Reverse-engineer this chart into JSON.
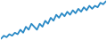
{
  "values": [
    1,
    2,
    1.5,
    2.5,
    2,
    3,
    2.5,
    4,
    3,
    5,
    4,
    6,
    5,
    4,
    6,
    5,
    7,
    6,
    8,
    7,
    9,
    8,
    9.5,
    8.5,
    10,
    9,
    10.5,
    9.5,
    11,
    10,
    11.5,
    10.5,
    12,
    11,
    12,
    11.5,
    13,
    12.5,
    13.5
  ],
  "line_color": "#2b8ac6",
  "background_color": "#ffffff",
  "linewidth": 1.3
}
